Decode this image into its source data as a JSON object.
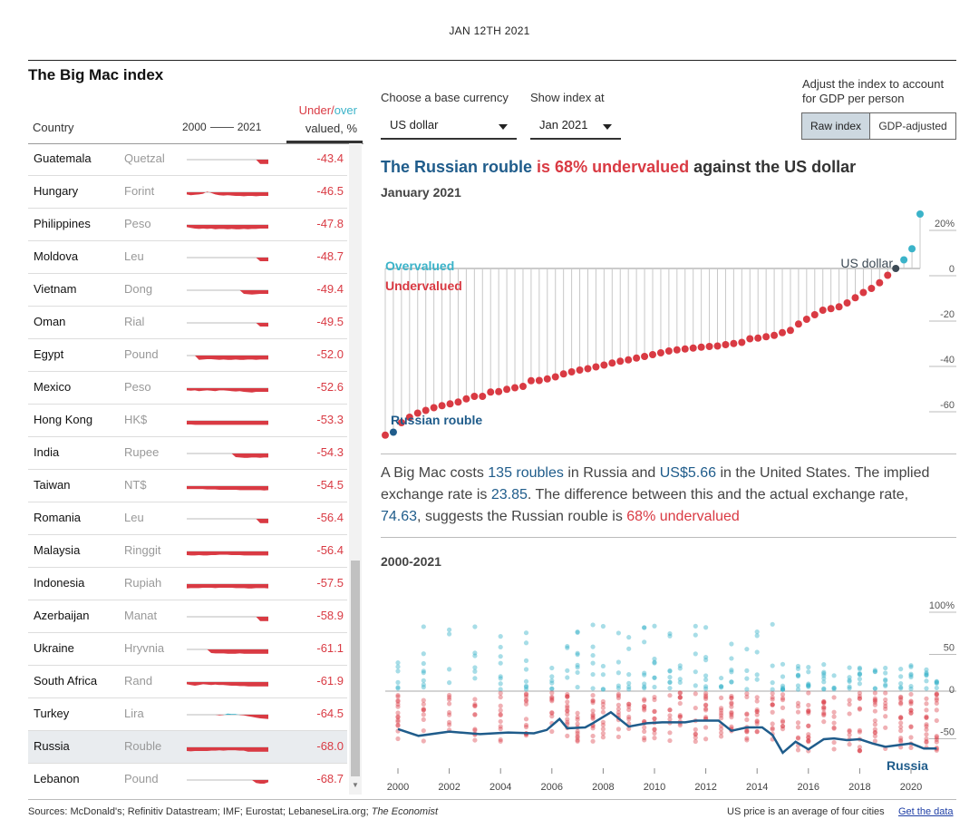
{
  "header": {
    "date": "JAN 12TH 2021",
    "title": "The Big Mac index"
  },
  "table": {
    "col_country": "Country",
    "col_year_start": "2000",
    "col_year_end": "2021",
    "col_value_under": "Under/",
    "col_value_over": "over",
    "col_value_rest": "valued, %",
    "rows": [
      {
        "country": "Guatemala",
        "currency": "Quetzal",
        "value": "-43.4"
      },
      {
        "country": "Hungary",
        "currency": "Forint",
        "value": "-46.5"
      },
      {
        "country": "Philippines",
        "currency": "Peso",
        "value": "-47.8"
      },
      {
        "country": "Moldova",
        "currency": "Leu",
        "value": "-48.7"
      },
      {
        "country": "Vietnam",
        "currency": "Dong",
        "value": "-49.4"
      },
      {
        "country": "Oman",
        "currency": "Rial",
        "value": "-49.5"
      },
      {
        "country": "Egypt",
        "currency": "Pound",
        "value": "-52.0"
      },
      {
        "country": "Mexico",
        "currency": "Peso",
        "value": "-52.6"
      },
      {
        "country": "Hong Kong",
        "currency": "HK$",
        "value": "-53.3"
      },
      {
        "country": "India",
        "currency": "Rupee",
        "value": "-54.3"
      },
      {
        "country": "Taiwan",
        "currency": "NT$",
        "value": "-54.5"
      },
      {
        "country": "Romania",
        "currency": "Leu",
        "value": "-56.4"
      },
      {
        "country": "Malaysia",
        "currency": "Ringgit",
        "value": "-56.4"
      },
      {
        "country": "Indonesia",
        "currency": "Rupiah",
        "value": "-57.5"
      },
      {
        "country": "Azerbaijan",
        "currency": "Manat",
        "value": "-58.9"
      },
      {
        "country": "Ukraine",
        "currency": "Hryvnia",
        "value": "-61.1"
      },
      {
        "country": "South Africa",
        "currency": "Rand",
        "value": "-61.9"
      },
      {
        "country": "Turkey",
        "currency": "Lira",
        "value": "-64.5"
      },
      {
        "country": "Russia",
        "currency": "Rouble",
        "value": "-68.0",
        "selected": true
      },
      {
        "country": "Lebanon",
        "currency": "Pound",
        "value": "-68.7"
      }
    ]
  },
  "controls": {
    "base_label": "Choose a base currency",
    "base_value": "US dollar",
    "date_label": "Show index at",
    "date_value": "Jan 2021",
    "adjust_label_1": "Adjust the index to account",
    "adjust_label_2": "for GDP per person",
    "raw_label": "Raw index",
    "gdp_label": "GDP-adjusted"
  },
  "headline": {
    "country": "The Russian rouble",
    "mid": " is 68% undervalued",
    "rest": " against the US dollar",
    "sub": "January 2021"
  },
  "desc": {
    "p1": "A Big Mac costs ",
    "local_price": "135 roubles",
    "p2": " in Russia and ",
    "us_price": "US$5.66",
    "p3": " in the United States. The implied exchange rate is ",
    "implied": "23.85",
    "p4": ". The difference between this and the actual exchange rate, ",
    "actual": "74.63",
    "p5": ", suggests the Russian rouble is ",
    "verdict": "68% undervalued"
  },
  "history_title": "2000-2021",
  "footer": {
    "source": "Sources: McDonald's; Refinitiv Datastream; IMF; Eurostat; LebaneseLira.org; ",
    "source_italic": "The Economist",
    "note": "US price is an average of four cities",
    "link": "Get the data"
  },
  "colors": {
    "under": "#d93a43",
    "over": "#3bb3c9",
    "highlight": "#1f5c8b",
    "base": "#3d4a55"
  },
  "chart_data": [
    {
      "type": "lollipop",
      "over_label": "Overvalued",
      "under_label": "Undervalued",
      "highlight_label": "Russian rouble",
      "base_label": "US dollar",
      "yticks": [
        20,
        0,
        -20,
        -40,
        -60
      ],
      "tick_labels": [
        "20%",
        "0",
        "-20",
        "-40",
        "-60"
      ],
      "ylim": [
        -80,
        30
      ],
      "values": [
        -73.5,
        -72.2,
        -68.0,
        -65.6,
        -63.8,
        -62.6,
        -61.4,
        -60.5,
        -59.7,
        -58.9,
        -57.5,
        -56.4,
        -56.4,
        -54.5,
        -54.3,
        -53.3,
        -52.6,
        -52.0,
        -49.5,
        -49.4,
        -48.7,
        -47.8,
        -46.5,
        -45.6,
        -44.8,
        -44.2,
        -43.4,
        -42.6,
        -41.7,
        -40.9,
        -40.3,
        -39.5,
        -38.8,
        -38.0,
        -37.2,
        -36.4,
        -35.9,
        -35.5,
        -35.1,
        -34.7,
        -34.4,
        -34.2,
        -33.6,
        -33.1,
        -32.6,
        -31.0,
        -30.7,
        -30.1,
        -29.5,
        -28.3,
        -27.3,
        -24.5,
        -22.4,
        -20.4,
        -18.4,
        -17.7,
        -16.9,
        -15.2,
        -12.9,
        -10.6,
        -8.8,
        -6.3,
        -3.0,
        0,
        3.8,
        8.7,
        24.0
      ],
      "highlight_value": -68.0
    },
    {
      "type": "scatter+line",
      "x_ticks": [
        "2000",
        "2002",
        "2004",
        "2006",
        "2008",
        "2010",
        "2012",
        "2014",
        "2016",
        "2018",
        "2020"
      ],
      "y_ticks": [
        100,
        50,
        0,
        -50
      ],
      "tick_labels": [
        "100%",
        "50",
        "0",
        "-50"
      ],
      "ylim": [
        -90,
        120
      ],
      "series_label": "Russia",
      "russia": [
        {
          "x": 2000.0,
          "y": -45
        },
        {
          "x": 2000.8,
          "y": -53
        },
        {
          "x": 2002.0,
          "y": -48
        },
        {
          "x": 2003.2,
          "y": -51
        },
        {
          "x": 2004.3,
          "y": -49
        },
        {
          "x": 2005.3,
          "y": -50
        },
        {
          "x": 2005.8,
          "y": -46
        },
        {
          "x": 2006.3,
          "y": -33
        },
        {
          "x": 2006.6,
          "y": -44
        },
        {
          "x": 2007.3,
          "y": -43
        },
        {
          "x": 2007.6,
          "y": -38
        },
        {
          "x": 2008.3,
          "y": -25
        },
        {
          "x": 2009.0,
          "y": -42
        },
        {
          "x": 2009.7,
          "y": -38
        },
        {
          "x": 2010.3,
          "y": -37
        },
        {
          "x": 2011.2,
          "y": -37
        },
        {
          "x": 2011.6,
          "y": -35
        },
        {
          "x": 2012.5,
          "y": -35
        },
        {
          "x": 2013.0,
          "y": -47
        },
        {
          "x": 2013.6,
          "y": -43
        },
        {
          "x": 2014.2,
          "y": -43
        },
        {
          "x": 2014.6,
          "y": -52
        },
        {
          "x": 2015.0,
          "y": -73
        },
        {
          "x": 2015.5,
          "y": -60
        },
        {
          "x": 2016.0,
          "y": -69
        },
        {
          "x": 2016.6,
          "y": -57
        },
        {
          "x": 2017.0,
          "y": -56
        },
        {
          "x": 2017.5,
          "y": -58
        },
        {
          "x": 2018.0,
          "y": -57
        },
        {
          "x": 2018.5,
          "y": -62
        },
        {
          "x": 2019.0,
          "y": -66
        },
        {
          "x": 2019.5,
          "y": -64
        },
        {
          "x": 2020.0,
          "y": -62
        },
        {
          "x": 2020.5,
          "y": -68
        },
        {
          "x": 2021.0,
          "y": -68
        }
      ]
    }
  ]
}
